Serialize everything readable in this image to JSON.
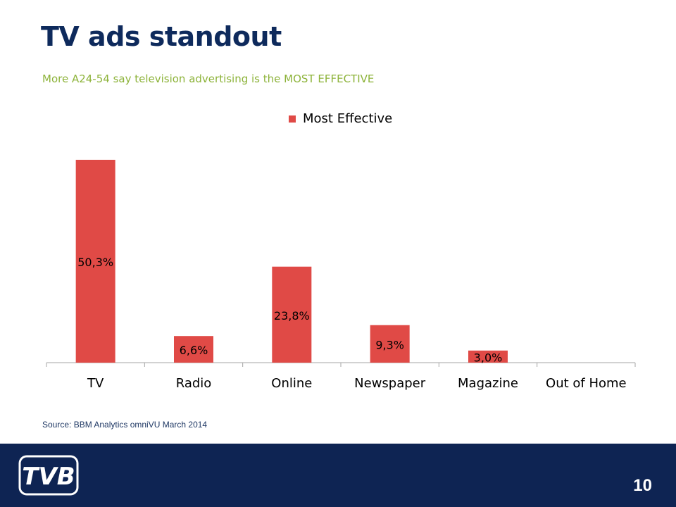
{
  "slide": {
    "title": "TV ads standout",
    "subtitle": "More A24-54 say television advertising is the MOST EFFECTIVE",
    "source": "Source: BBM Analytics omniVU March 2014",
    "page_number": "10",
    "logo_text": "TVB"
  },
  "colors": {
    "bar": "#e04a46",
    "title": "#0e2a5c",
    "subtitle": "#8db33a",
    "footer": "#0e2453"
  },
  "chart_data": {
    "type": "bar",
    "categories": [
      "TV",
      "Radio",
      "Online",
      "Newspaper",
      "Magazine",
      "Out of Home"
    ],
    "series": [
      {
        "name": "Most Effective",
        "values": [
          50.3,
          6.6,
          23.8,
          9.3,
          3.0,
          null
        ],
        "labels": [
          "50,3%",
          "6,6%",
          "23,8%",
          "9,3%",
          "3,0%",
          ""
        ]
      }
    ],
    "legend_position": "top",
    "grid": false
  }
}
